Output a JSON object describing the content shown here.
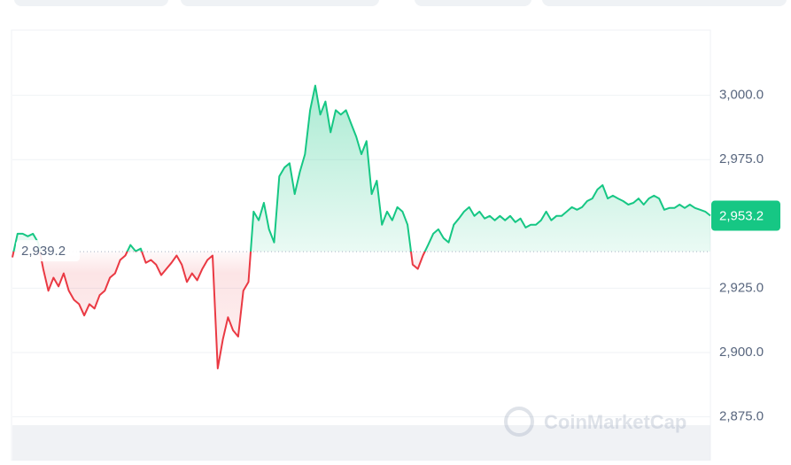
{
  "chart_data": {
    "type": "line",
    "values": [
      2937.0,
      2946.2,
      2946.2,
      2945.2,
      2946.2,
      2942.8,
      2932.5,
      2924.0,
      2929.1,
      2925.7,
      2930.8,
      2924.0,
      2920.5,
      2918.8,
      2914.4,
      2918.8,
      2917.1,
      2922.3,
      2924.0,
      2929.1,
      2930.8,
      2936.0,
      2937.7,
      2941.8,
      2939.4,
      2940.4,
      2934.9,
      2936.0,
      2934.2,
      2930.1,
      2932.5,
      2934.9,
      2937.7,
      2934.2,
      2927.4,
      2930.8,
      2928.1,
      2932.5,
      2936.0,
      2937.7,
      2893.8,
      2905.1,
      2913.7,
      2908.6,
      2906.2,
      2924.0,
      2927.4,
      2954.8,
      2951.4,
      2958.2,
      2947.9,
      2942.8,
      2968.5,
      2971.9,
      2973.6,
      2961.6,
      2970.2,
      2977.1,
      2994.2,
      3003.8,
      2992.5,
      2997.6,
      2985.6,
      2994.2,
      2992.5,
      2994.2,
      2989.0,
      2983.9,
      2977.1,
      2982.2,
      2961.6,
      2966.8,
      2949.7,
      2954.8,
      2951.4,
      2956.5,
      2954.8,
      2949.7,
      2934.2,
      2932.5,
      2937.7,
      2941.8,
      2946.2,
      2947.9,
      2944.5,
      2942.8,
      2949.7,
      2952.1,
      2954.8,
      2956.5,
      2953.1,
      2954.8,
      2952.1,
      2953.1,
      2951.4,
      2953.1,
      2951.4,
      2953.1,
      2950.7,
      2952.1,
      2948.6,
      2949.7,
      2949.7,
      2951.4,
      2954.8,
      2951.4,
      2953.1,
      2953.1,
      2954.8,
      2956.5,
      2955.5,
      2956.5,
      2958.9,
      2959.9,
      2963.4,
      2965.1,
      2959.9,
      2961.0,
      2959.9,
      2958.9,
      2957.5,
      2958.2,
      2959.9,
      2957.5,
      2959.9,
      2961.0,
      2959.9,
      2955.5,
      2956.2,
      2956.2,
      2957.5,
      2956.2,
      2957.5,
      2956.2,
      2955.5,
      2954.8,
      2953.2
    ],
    "ylim": [
      2858,
      3025
    ],
    "yticks": [
      {
        "value": 2875,
        "label": "2,875.0"
      },
      {
        "value": 2900,
        "label": "2,900.0"
      },
      {
        "value": 2925,
        "label": "2,925.0"
      },
      {
        "value": 2975,
        "label": "2,975.0"
      },
      {
        "value": 3000,
        "label": "3,000.0"
      }
    ],
    "reference": {
      "value": 2939.2,
      "label": "2,939.2"
    },
    "last_price": {
      "value": 2953.2,
      "label": "2,953.2"
    },
    "up_color": "#16c784",
    "down_color": "#ea3943",
    "grid": true,
    "watermark": "CoinMarketCap"
  }
}
